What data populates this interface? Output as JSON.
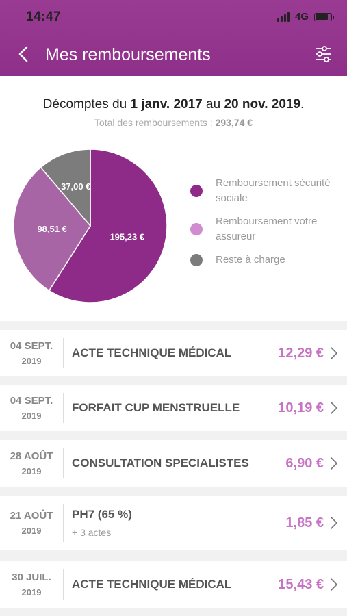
{
  "status": {
    "time": "14:47",
    "network": "4G"
  },
  "header": {
    "title": "Mes remboursements"
  },
  "summary": {
    "period_prefix": "Décomptes du ",
    "period_start": "1 janv. 2017",
    "period_middle": " au ",
    "period_end": "20 nov. 2019",
    "period_suffix": ".",
    "total_label": "Total des remboursements : ",
    "total_value": "293,74 €"
  },
  "chart_data": {
    "type": "pie",
    "slices": [
      {
        "name": "Remboursement sécurité sociale",
        "value": 195.23,
        "label": "195,23 €",
        "color": "#8e2b88"
      },
      {
        "name": "Remboursement votre assureur",
        "value": 98.51,
        "label": "98,51 €",
        "color": "#a765a5"
      },
      {
        "name": "Reste à charge",
        "value": 37.0,
        "label": "37,00 €",
        "color": "#7c7c7c"
      }
    ],
    "legend_position": "right"
  },
  "legend": [
    {
      "label": "Remboursement sécurité sociale",
      "color": "#8e2b88"
    },
    {
      "label": "Remboursement votre assureur",
      "color": "#d08ccf"
    },
    {
      "label": "Reste à charge",
      "color": "#7c7c7c"
    }
  ],
  "rows": [
    {
      "date_day": "04 SEPT.",
      "date_year": "2019",
      "label": "ACTE TECHNIQUE MÉDICAL",
      "sub": "",
      "amount": "12,29 €"
    },
    {
      "date_day": "04 SEPT.",
      "date_year": "2019",
      "label": "FORFAIT CUP MENSTRUELLE",
      "sub": "",
      "amount": "10,19 €"
    },
    {
      "date_day": "28 AOÛT",
      "date_year": "2019",
      "label": "CONSULTATION SPECIALISTES",
      "sub": "",
      "amount": "6,90 €"
    },
    {
      "date_day": "21 AOÛT",
      "date_year": "2019",
      "label": "PH7 (65 %)",
      "sub": "+ 3 actes",
      "amount": "1,85 €"
    },
    {
      "date_day": "30 JUIL.",
      "date_year": "2019",
      "label": "ACTE TECHNIQUE MÉDICAL",
      "sub": "",
      "amount": "15,43 €"
    }
  ]
}
